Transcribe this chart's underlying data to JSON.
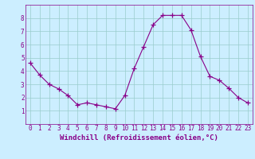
{
  "x": [
    0,
    1,
    2,
    3,
    4,
    5,
    6,
    7,
    8,
    9,
    10,
    11,
    12,
    13,
    14,
    15,
    16,
    17,
    18,
    19,
    20,
    21,
    22,
    23
  ],
  "y": [
    4.6,
    3.7,
    3.0,
    2.65,
    2.15,
    1.45,
    1.6,
    1.45,
    1.3,
    1.15,
    2.15,
    4.2,
    5.85,
    7.5,
    8.2,
    8.2,
    8.2,
    7.1,
    5.1,
    3.6,
    3.3,
    2.7,
    2.0,
    1.6
  ],
  "line_color": "#880088",
  "bg_color": "#cceeff",
  "grid_color": "#99cccc",
  "xlabel": "Windchill (Refroidissement éolien,°C)",
  "xlabel_color": "#880088",
  "ylim": [
    0,
    9
  ],
  "xlim": [
    -0.5,
    23.5
  ],
  "yticks": [
    1,
    2,
    3,
    4,
    5,
    6,
    7,
    8
  ],
  "xticks": [
    0,
    1,
    2,
    3,
    4,
    5,
    6,
    7,
    8,
    9,
    10,
    11,
    12,
    13,
    14,
    15,
    16,
    17,
    18,
    19,
    20,
    21,
    22,
    23
  ],
  "tick_fontsize": 5.5,
  "xlabel_fontsize": 6.5
}
